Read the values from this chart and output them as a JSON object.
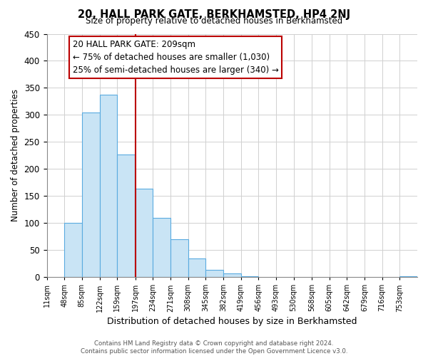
{
  "title": "20, HALL PARK GATE, BERKHAMSTED, HP4 2NJ",
  "subtitle": "Size of property relative to detached houses in Berkhamsted",
  "xlabel": "Distribution of detached houses by size in Berkhamsted",
  "ylabel": "Number of detached properties",
  "bar_values": [
    0,
    100,
    305,
    337,
    227,
    163,
    110,
    70,
    35,
    13,
    7,
    2,
    0,
    0,
    0,
    0,
    0,
    0,
    0,
    0,
    2
  ],
  "bin_edges": [
    11,
    48,
    85,
    122,
    159,
    197,
    234,
    271,
    308,
    345,
    382,
    419,
    456,
    493,
    530,
    568,
    605,
    642,
    679,
    716,
    753
  ],
  "tick_labels": [
    "11sqm",
    "48sqm",
    "85sqm",
    "122sqm",
    "159sqm",
    "197sqm",
    "234sqm",
    "271sqm",
    "308sqm",
    "345sqm",
    "382sqm",
    "419sqm",
    "456sqm",
    "493sqm",
    "530sqm",
    "568sqm",
    "605sqm",
    "642sqm",
    "679sqm",
    "716sqm",
    "753sqm"
  ],
  "bar_color": "#c9e4f5",
  "bar_edge_color": "#5aabe0",
  "vline_x_idx": 5,
  "vline_color": "#bb0000",
  "ylim": [
    0,
    450
  ],
  "yticks": [
    0,
    50,
    100,
    150,
    200,
    250,
    300,
    350,
    400,
    450
  ],
  "annotation_title": "20 HALL PARK GATE: 209sqm",
  "annotation_line1": "← 75% of detached houses are smaller (1,030)",
  "annotation_line2": "25% of semi-detached houses are larger (340) →",
  "annotation_box_color": "#ffffff",
  "annotation_box_edge": "#bb0000",
  "footer_line1": "Contains HM Land Registry data © Crown copyright and database right 2024.",
  "footer_line2": "Contains public sector information licensed under the Open Government Licence v3.0.",
  "background_color": "#ffffff",
  "grid_color": "#d0d0d0"
}
